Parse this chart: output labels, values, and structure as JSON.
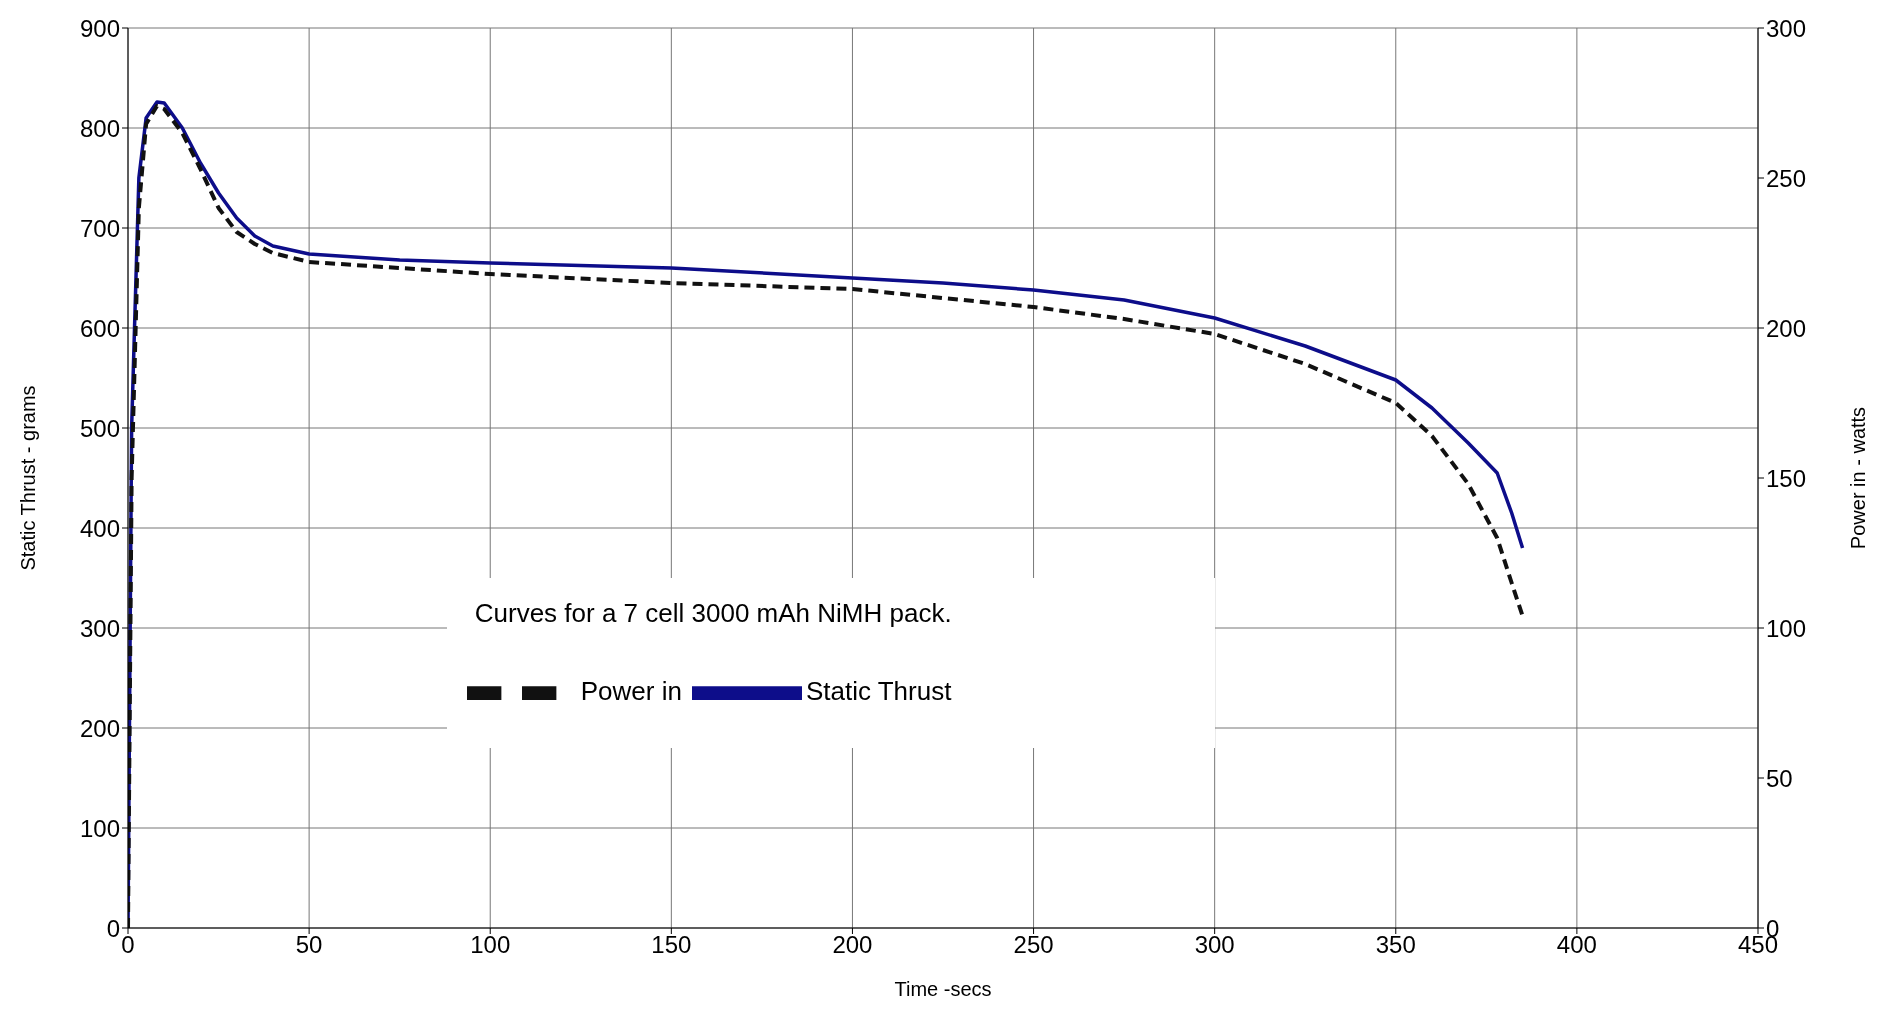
{
  "chart_data": {
    "type": "line",
    "xlabel": "Time -secs",
    "ylabel": "Static Thrust - grams",
    "y2label": "Power in - watts",
    "annotations": [
      "Curves for a 7 cell 3000 mAh NiMH pack."
    ],
    "xlim": [
      0,
      450
    ],
    "xticks": [
      0,
      50,
      100,
      150,
      200,
      250,
      300,
      350,
      400,
      450
    ],
    "ylim": [
      0,
      900
    ],
    "yticks": [
      0,
      100,
      200,
      300,
      400,
      500,
      600,
      700,
      800,
      900
    ],
    "y2lim": [
      0,
      300
    ],
    "y2ticks": [
      0,
      50,
      100,
      150,
      200,
      250,
      300
    ],
    "grid": true,
    "legend": "center",
    "series": [
      {
        "name": "Static Thrust",
        "color": "#0d0d8a",
        "line_style": "solid",
        "x": [
          0,
          1,
          3,
          5,
          8,
          10,
          15,
          20,
          25,
          30,
          35,
          40,
          50,
          75,
          100,
          150,
          200,
          225,
          250,
          275,
          300,
          325,
          350,
          360,
          370,
          378,
          382,
          385
        ],
        "values": [
          0,
          500,
          750,
          810,
          826,
          825,
          800,
          765,
          735,
          710,
          692,
          682,
          674,
          668,
          665,
          660,
          650,
          645,
          638,
          628,
          610,
          582,
          548,
          520,
          485,
          455,
          415,
          380
        ]
      },
      {
        "name": "Power in",
        "color": "#111111",
        "line_style": "dashed",
        "axis": "y2",
        "x": [
          0,
          1,
          3,
          5,
          8,
          10,
          15,
          20,
          25,
          30,
          35,
          40,
          50,
          100,
          150,
          200,
          250,
          275,
          300,
          325,
          350,
          360,
          370,
          378,
          382,
          385
        ],
        "values": [
          0,
          150,
          240,
          268,
          274,
          273,
          265,
          253,
          240,
          232,
          228,
          225,
          222,
          218,
          215,
          213,
          207,
          203,
          198,
          188,
          175,
          164,
          148,
          130,
          115,
          104
        ]
      }
    ]
  }
}
